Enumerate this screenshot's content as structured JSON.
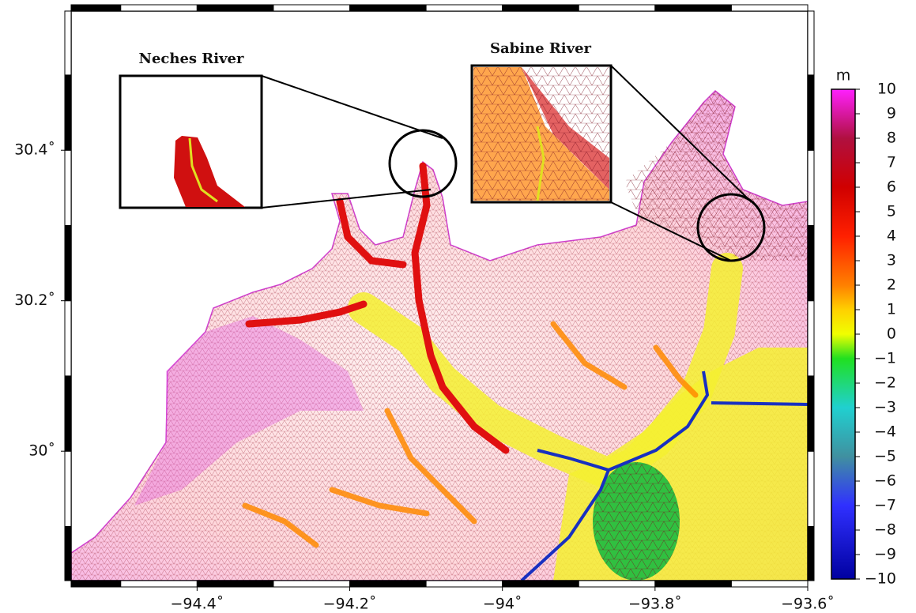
{
  "map": {
    "xlim": [
      -94.565,
      -93.6
    ],
    "ylim": [
      29.828,
      30.585
    ],
    "xticks": [
      {
        "value": -94.4,
        "label": "−94.4˚"
      },
      {
        "value": -94.2,
        "label": "−94.2˚"
      },
      {
        "value": -94,
        "label": "−94˚"
      },
      {
        "value": -93.8,
        "label": "−93.8˚"
      },
      {
        "value": -93.6,
        "label": "−93.6˚"
      }
    ],
    "yticks": [
      {
        "value": 30,
        "label": "30˚"
      },
      {
        "value": 30.2,
        "label": "30.2˚"
      },
      {
        "value": 30.4,
        "label": "30.4˚"
      }
    ],
    "insets": [
      {
        "label": "Neches River"
      },
      {
        "label": "Sabine River"
      }
    ],
    "colorbar": {
      "unit": "m",
      "lim": [
        -10,
        10
      ],
      "ticks": [
        10,
        9,
        8,
        7,
        6,
        5,
        4,
        3,
        2,
        1,
        0,
        {
          "value": -1,
          "label": "−1"
        },
        {
          "value": -2,
          "label": "−2"
        },
        {
          "value": -3,
          "label": "−3"
        },
        {
          "value": -4,
          "label": "−4"
        },
        {
          "value": -5,
          "label": "−5"
        },
        {
          "value": -6,
          "label": "−6"
        },
        {
          "value": -7,
          "label": "−7"
        },
        {
          "value": -8,
          "label": "−8"
        },
        {
          "value": -9,
          "label": "−9"
        },
        {
          "value": -10,
          "label": "−10"
        }
      ]
    }
  }
}
